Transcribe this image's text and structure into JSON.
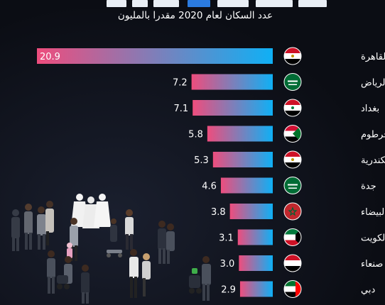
{
  "header": {
    "subtitle": "عدد السكان لعام 2020 مقدرا بالمليون"
  },
  "colors": {
    "bar_end": "#0fb0f5",
    "bar_start": "#ee4d7d",
    "background": "#0b0d14"
  },
  "chart_data": {
    "type": "bar",
    "orientation": "horizontal",
    "title": "",
    "subtitle": "عدد السكان لعام 2020 مقدرا بالمليون",
    "xlabel": "",
    "ylabel": "",
    "xlim": [
      0,
      20.9
    ],
    "grid": false,
    "legend": "none",
    "categories": [
      "القاهرة",
      "الرياض",
      "بغداد",
      "الخرطوم",
      "الإسكندرية",
      "جدة",
      "الدار البيضاء",
      "الكويت",
      "صنعاء",
      "دبي"
    ],
    "flags": [
      "egypt-flag-icon",
      "saudi-flag-icon",
      "iraq-flag-icon",
      "sudan-flag-icon",
      "egypt-flag-icon",
      "saudi-flag-icon",
      "morocco-flag-icon",
      "kuwait-flag-icon",
      "yemen-flag-icon",
      "uae-flag-icon"
    ],
    "values": [
      20.9,
      7.2,
      7.1,
      5.8,
      5.3,
      4.6,
      3.8,
      3.1,
      3.0,
      2.9
    ],
    "value_labels": [
      "20.9",
      "7.2",
      "7.1",
      "5.8",
      "5.3",
      "4.6",
      "3.8",
      "3.1",
      "3.0",
      "2.9"
    ]
  }
}
